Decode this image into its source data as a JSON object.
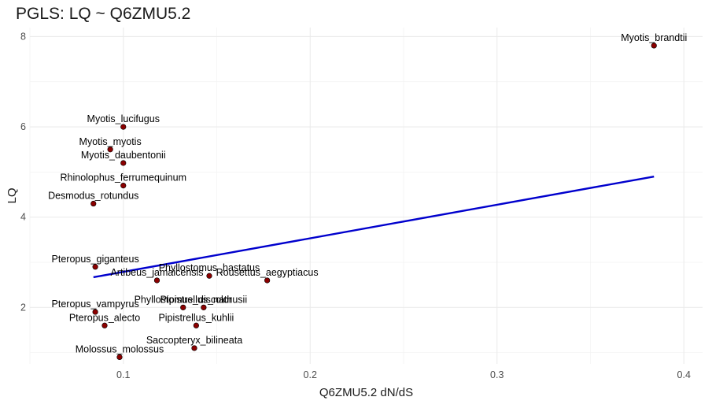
{
  "chart_data": {
    "type": "scatter",
    "title": "PGLS: LQ ~ Q6ZMU5.2",
    "xlabel": "Q6ZMU5.2 dN/dS",
    "ylabel": "LQ",
    "xlim": [
      0.05,
      0.41
    ],
    "ylim": [
      0.75,
      8.2
    ],
    "x_ticks": [
      0.1,
      0.2,
      0.3,
      0.4
    ],
    "x_tick_labels": [
      "0.1",
      "0.2",
      "0.3",
      "0.4"
    ],
    "y_ticks": [
      2,
      4,
      6,
      8
    ],
    "y_tick_labels": [
      "2",
      "4",
      "6",
      "8"
    ],
    "grid": true,
    "point_color": "#8b0000",
    "line_color": "#0000cd",
    "points": [
      {
        "label": "Myotis_brandtii",
        "x": 0.384,
        "y": 7.8
      },
      {
        "label": "Myotis_lucifugus",
        "x": 0.1,
        "y": 6.0
      },
      {
        "label": "Myotis_myotis",
        "x": 0.093,
        "y": 5.5
      },
      {
        "label": "Myotis_daubentonii",
        "x": 0.1,
        "y": 5.2
      },
      {
        "label": "Rhinolophus_ferrumequinum",
        "x": 0.1,
        "y": 4.7
      },
      {
        "label": "Desmodus_rotundus",
        "x": 0.084,
        "y": 4.3
      },
      {
        "label": "Pteropus_giganteus",
        "x": 0.085,
        "y": 2.9
      },
      {
        "label": "Phyllostomus_hastatus",
        "x": 0.146,
        "y": 2.7
      },
      {
        "label": "Artibeus_jamaicensis",
        "x": 0.118,
        "y": 2.6
      },
      {
        "label": "Rousettus_aegyptiacus",
        "x": 0.177,
        "y": 2.6
      },
      {
        "label": "Phyllostomus_discolor",
        "x": 0.132,
        "y": 2.0
      },
      {
        "label": "Pipistrellus_nathusii",
        "x": 0.143,
        "y": 2.0
      },
      {
        "label": "Pteropus_vampyrus",
        "x": 0.085,
        "y": 1.9
      },
      {
        "label": "Pteropus_alecto",
        "x": 0.09,
        "y": 1.6
      },
      {
        "label": "Pipistrellus_kuhlii",
        "x": 0.139,
        "y": 1.6
      },
      {
        "label": "Saccopteryx_bilineata",
        "x": 0.138,
        "y": 1.1
      },
      {
        "label": "Molossus_molossus",
        "x": 0.098,
        "y": 0.9
      }
    ],
    "regression_line": {
      "x": [
        0.084,
        0.384
      ],
      "y": [
        2.67,
        4.9
      ]
    }
  }
}
